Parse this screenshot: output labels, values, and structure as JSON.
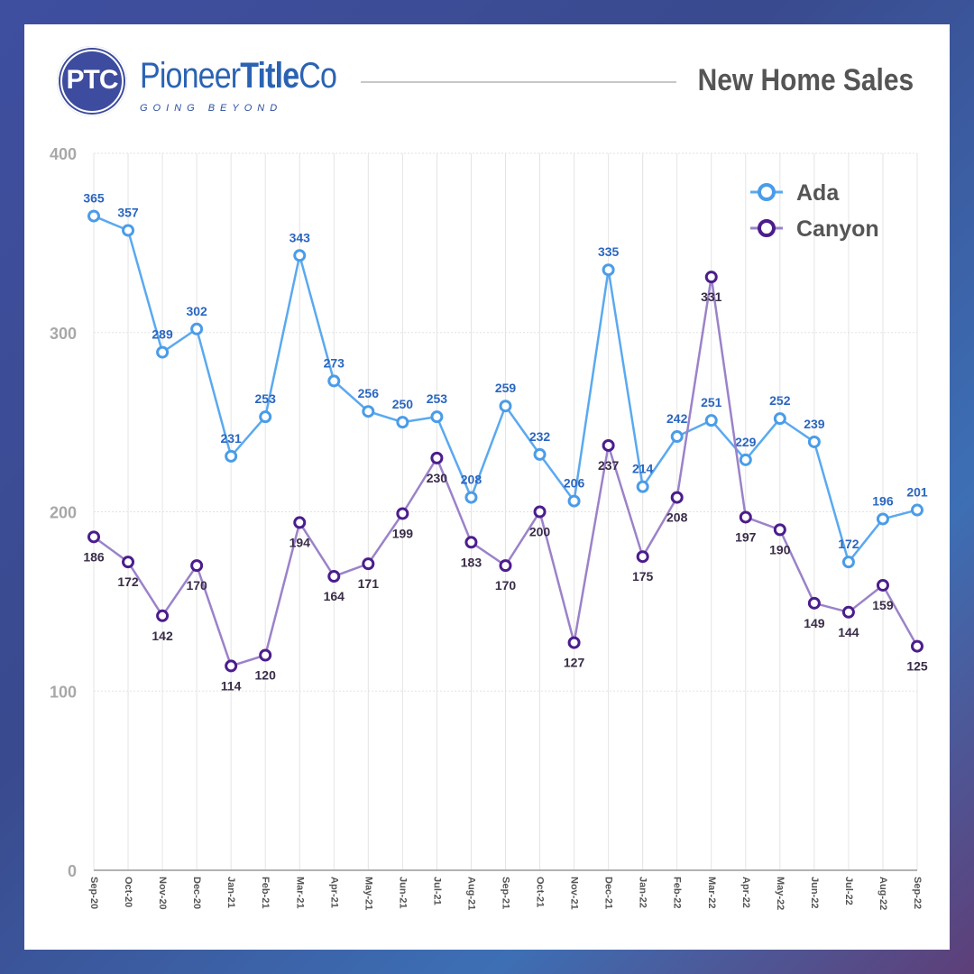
{
  "header": {
    "logo_mark": "PTC",
    "brand_regular": "Pioneer",
    "brand_bold": "Title",
    "brand_end": "Co",
    "tagline": "GOING BEYOND",
    "title": "New Home Sales"
  },
  "chart_data": {
    "type": "line",
    "title": "New Home Sales",
    "xlabel": "",
    "ylabel": "",
    "ylim": [
      0,
      400
    ],
    "yticks": [
      0,
      100,
      200,
      300,
      400
    ],
    "grid": true,
    "legend_position": "top-right",
    "x": [
      "Sep-20",
      "Oct-20",
      "Nov-20",
      "Dec-20",
      "Jan-21",
      "Feb-21",
      "Mar-21",
      "Apr-21",
      "May-21",
      "Jun-21",
      "Jul-21",
      "Aug-21",
      "Sep-21",
      "Oct-21",
      "Nov-21",
      "Dec-21",
      "Jan-22",
      "Feb-22",
      "Mar-22",
      "Apr-22",
      "May-22",
      "Jun-22",
      "Jul-22",
      "Aug-22",
      "Sep-22"
    ],
    "series": [
      {
        "name": "Ada",
        "line_color": "#5aa9f0",
        "marker_color": "#4a9ce8",
        "label_color": "#2a66c0",
        "values": [
          365,
          357,
          289,
          302,
          231,
          253,
          343,
          273,
          256,
          250,
          253,
          208,
          259,
          232,
          206,
          335,
          214,
          242,
          251,
          229,
          252,
          239,
          172,
          196,
          201
        ]
      },
      {
        "name": "Canyon",
        "line_color": "#9b82c9",
        "marker_color": "#4b1d8c",
        "label_color": "#3a2c48",
        "values": [
          186,
          172,
          142,
          170,
          114,
          120,
          194,
          164,
          171,
          199,
          230,
          183,
          170,
          200,
          127,
          237,
          175,
          208,
          331,
          197,
          190,
          149,
          144,
          159,
          125
        ]
      }
    ]
  }
}
